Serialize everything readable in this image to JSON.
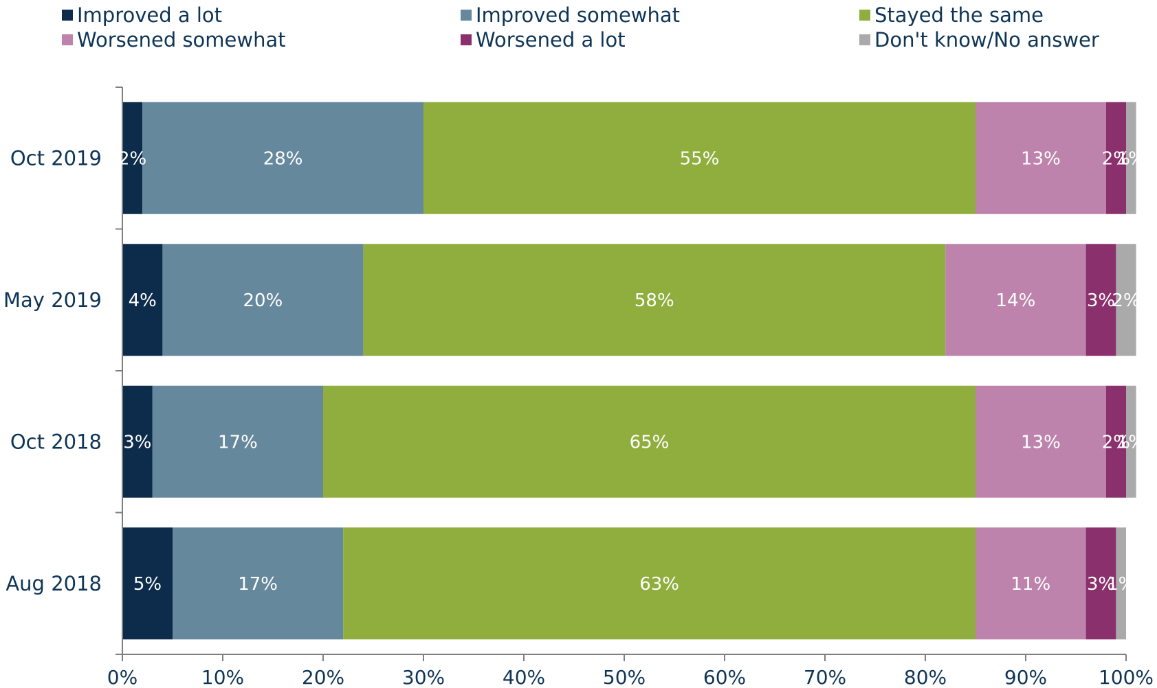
{
  "chart_data": {
    "type": "bar",
    "orientation": "horizontal",
    "stacked": "100%",
    "categories": [
      "Oct 2019",
      "May 2019",
      "Oct 2018",
      "Aug 2018"
    ],
    "series": [
      {
        "name": "Improved a lot",
        "color": "#0d2b4a",
        "values": [
          2,
          4,
          3,
          5
        ],
        "labels": [
          "2%",
          "4%",
          "3%",
          "5%"
        ]
      },
      {
        "name": "Improved somewhat",
        "color": "#66889c",
        "values": [
          28,
          20,
          17,
          17
        ],
        "labels": [
          "28%",
          "20%",
          "17%",
          "17%"
        ]
      },
      {
        "name": "Stayed the same",
        "color": "#8fae3e",
        "values": [
          55,
          58,
          65,
          63
        ],
        "labels": [
          "55%",
          "58%",
          "65%",
          "63%"
        ]
      },
      {
        "name": "Worsened somewhat",
        "color": "#bd83ac",
        "values": [
          13,
          14,
          13,
          11
        ],
        "labels": [
          "13%",
          "14%",
          "13%",
          "11%"
        ]
      },
      {
        "name": "Worsened a lot",
        "color": "#8a306c",
        "values": [
          2,
          3,
          2,
          3
        ],
        "labels": [
          "2%",
          "3%",
          "2%",
          "3%"
        ]
      },
      {
        "name": "Don't know/No answer",
        "color": "#aaaaaa",
        "values": [
          1,
          2,
          1,
          1
        ],
        "labels": [
          "1%",
          "2%",
          "1%",
          "1%"
        ]
      }
    ],
    "xlim": [
      0,
      100
    ],
    "xticks": [
      "0%",
      "10%",
      "20%",
      "30%",
      "40%",
      "50%",
      "60%",
      "70%",
      "80%",
      "90%",
      "100%"
    ],
    "grid": false,
    "legend_position": "top",
    "axis_color": "#7f7f7f",
    "text_color": "#0f3556"
  }
}
